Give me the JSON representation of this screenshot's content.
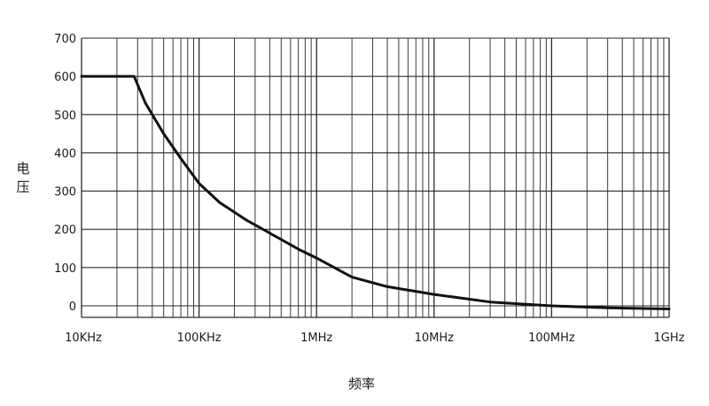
{
  "chart_data": {
    "type": "line",
    "title": "",
    "xlabel": "频率",
    "ylabel": "电压",
    "xscale": "log",
    "xlim_hz": [
      10000,
      1000000000
    ],
    "ylim": [
      0,
      700
    ],
    "grid": true,
    "legend": "none",
    "x_tick_labels": [
      "10KHz",
      "100KHz",
      "1MHz",
      "10MHz",
      "100MHz",
      "1GHz"
    ],
    "y_tick_labels": [
      "700",
      "600",
      "500",
      "400",
      "300",
      "200",
      "100",
      "0"
    ],
    "series": [
      {
        "x": [
          10000,
          15000,
          25000,
          28000,
          35000,
          50000,
          70000,
          100000,
          150000,
          250000,
          400000,
          700000,
          1000000,
          2000000,
          4000000,
          10000000,
          30000000,
          100000000,
          300000000,
          1000000000
        ],
        "y": [
          600,
          600,
          600,
          600,
          530,
          450,
          385,
          320,
          270,
          225,
          190,
          148,
          125,
          75,
          50,
          30,
          10,
          0,
          -5,
          -8
        ]
      }
    ],
    "colors": {
      "line": "#111111",
      "grid": "#2a2a2a"
    }
  }
}
